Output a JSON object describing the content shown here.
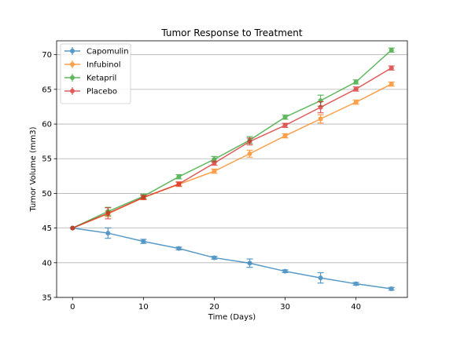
{
  "chart_data": {
    "type": "line",
    "title": "Tumor Response to Treatment",
    "xlabel": "Time (Days)",
    "ylabel": "Tumor Volume (mm3)",
    "xlim": [
      -2.25,
      47.25
    ],
    "ylim": [
      35,
      72
    ],
    "xticks": [
      0,
      10,
      20,
      30,
      40
    ],
    "yticks": [
      35,
      40,
      45,
      50,
      55,
      60,
      65,
      70
    ],
    "grid": "horizontal",
    "legend_position": "top-left",
    "x": [
      0,
      5,
      10,
      15,
      20,
      25,
      30,
      35,
      40,
      45
    ],
    "series": [
      {
        "name": "Capomulin",
        "color": "#1f77b4",
        "marker": "circle",
        "values": [
          45.0,
          44.27,
          43.08,
          42.06,
          40.72,
          39.94,
          38.77,
          37.82,
          36.96,
          36.24
        ],
        "errors": [
          0,
          0.75,
          0.3,
          0.2,
          0.2,
          0.6,
          0.2,
          0.75,
          0.2,
          0.2
        ]
      },
      {
        "name": "Infubinol",
        "color": "#ff7f0e",
        "marker": "circle",
        "values": [
          45.0,
          47.06,
          49.4,
          51.3,
          53.2,
          55.72,
          58.3,
          60.74,
          63.16,
          65.76
        ],
        "errors": [
          0,
          0.4,
          0.3,
          0.3,
          0.3,
          0.5,
          0.3,
          0.6,
          0.3,
          0.3
        ]
      },
      {
        "name": "Ketapril",
        "color": "#2ca02c",
        "marker": "circle",
        "values": [
          45.0,
          47.39,
          49.58,
          52.4,
          54.92,
          57.68,
          60.99,
          63.37,
          66.07,
          70.66
        ],
        "errors": [
          0,
          0.6,
          0.3,
          0.3,
          0.4,
          0.5,
          0.3,
          0.8,
          0.3,
          0.3
        ]
      },
      {
        "name": "Placebo",
        "color": "#d62728",
        "marker": "circle",
        "values": [
          45.0,
          47.13,
          49.42,
          51.36,
          54.36,
          57.48,
          59.81,
          62.42,
          65.05,
          68.08
        ],
        "errors": [
          0,
          0.8,
          0.3,
          0.3,
          0.3,
          0.5,
          0.3,
          0.8,
          0.3,
          0.3
        ]
      }
    ]
  }
}
